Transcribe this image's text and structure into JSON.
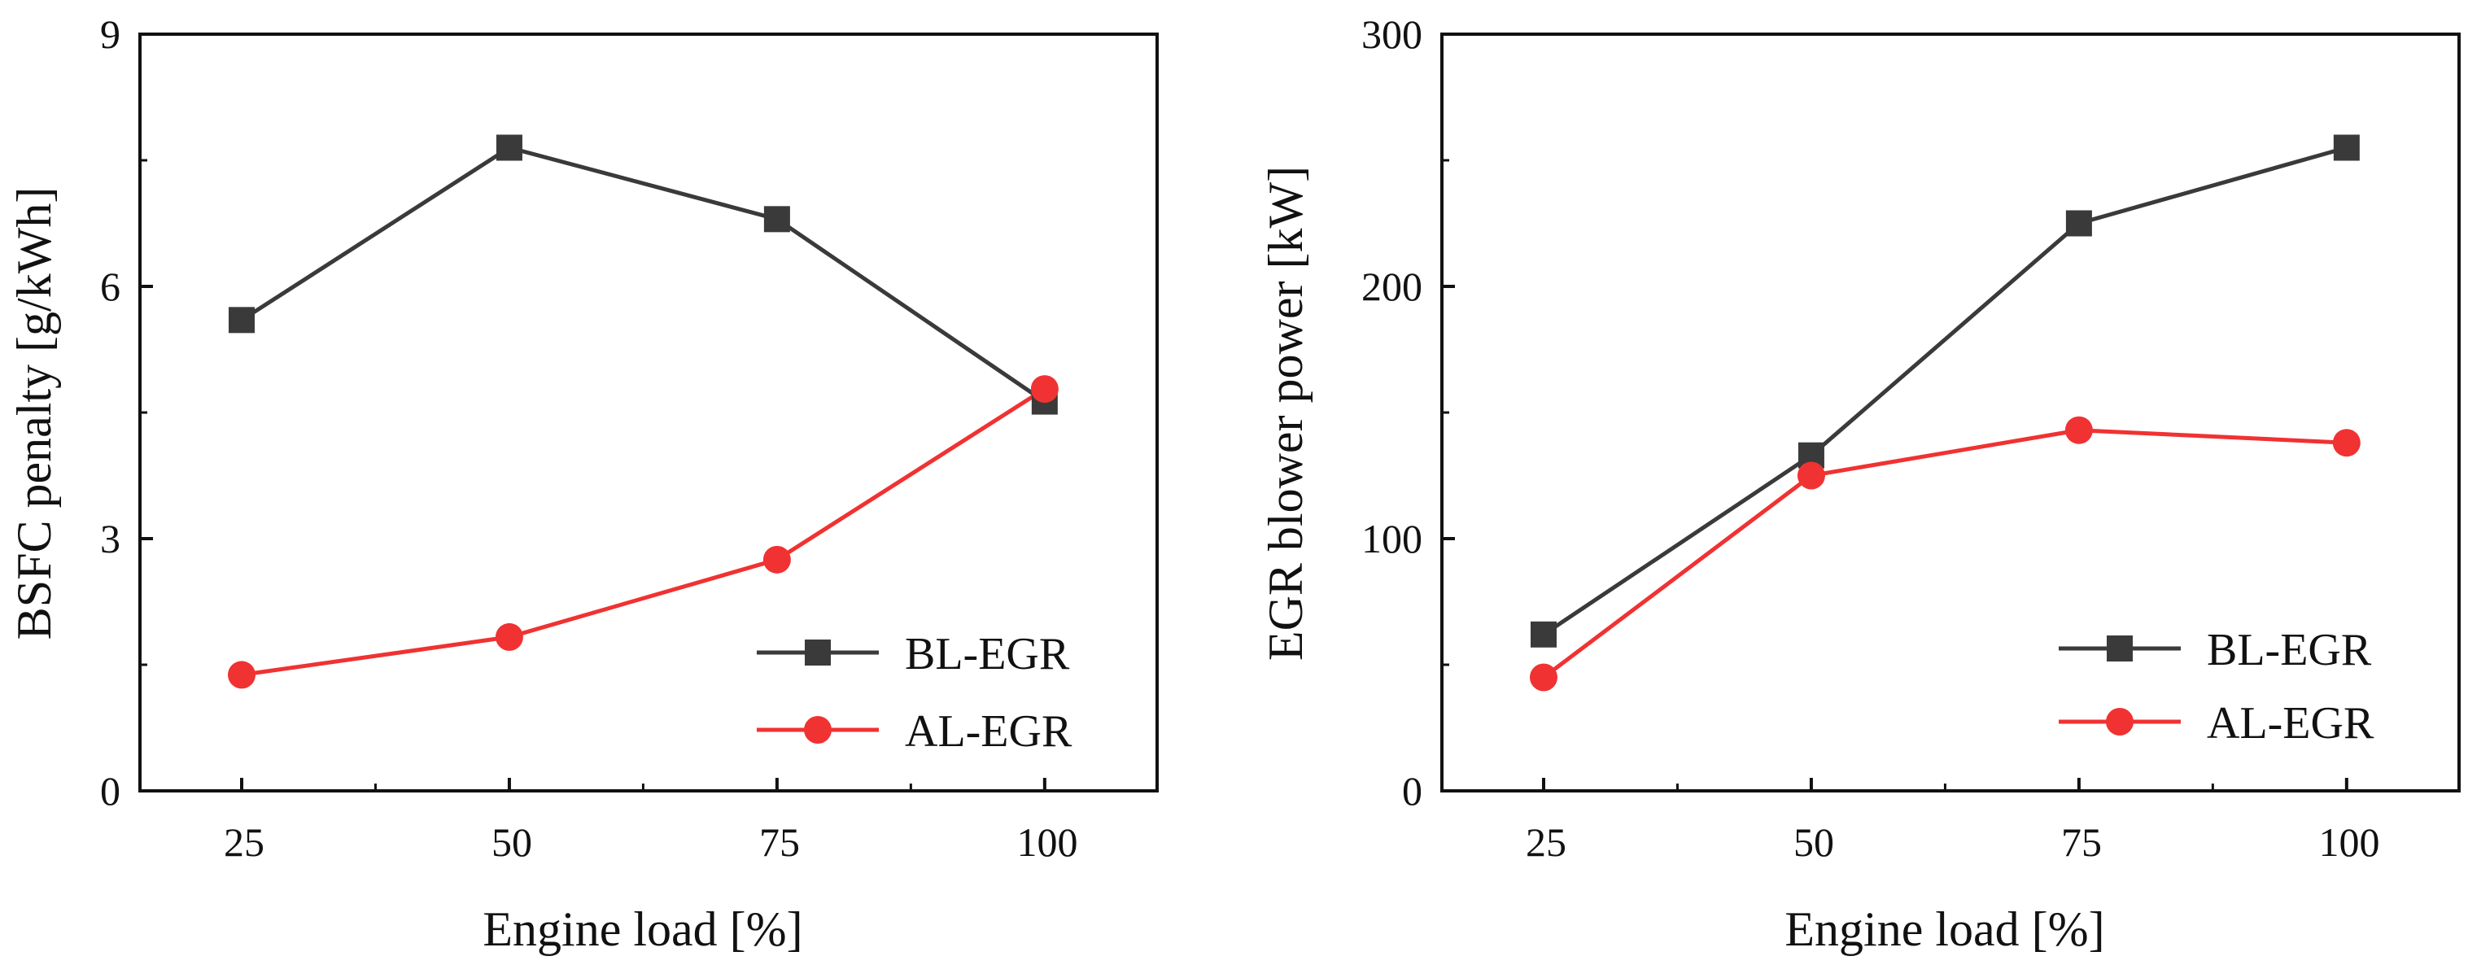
{
  "colors": {
    "bl_egr": "#3a3a3a",
    "al_egr": "#f03232",
    "axis": "#111111"
  },
  "chart_data": [
    {
      "type": "line",
      "title": "",
      "xlabel": "Engine load [%]",
      "ylabel": "BSFC penalty [g/kWh]",
      "categories": [
        "25",
        "50",
        "75",
        "100"
      ],
      "x": [
        25,
        50,
        75,
        100
      ],
      "xlim": [
        15.5,
        110.5
      ],
      "ylim": [
        0,
        9
      ],
      "yticks": [
        "0",
        "3",
        "6",
        "9"
      ],
      "ytick_values": [
        0,
        3,
        6,
        9
      ],
      "grid": false,
      "legend_position": "bottom-right",
      "series": [
        {
          "name": "BL-EGR",
          "marker": "square",
          "color": "#3a3a3a",
          "values": [
            5.6,
            7.65,
            6.8,
            4.63
          ]
        },
        {
          "name": "AL-EGR",
          "marker": "circle",
          "color": "#f03232",
          "values": [
            1.38,
            1.83,
            2.75,
            4.78
          ]
        }
      ]
    },
    {
      "type": "line",
      "title": "",
      "xlabel": "Engine load [%]",
      "ylabel": "EGR blower power [kW]",
      "categories": [
        "25",
        "50",
        "75",
        "100"
      ],
      "x": [
        25,
        50,
        75,
        100
      ],
      "xlim": [
        15.5,
        110.5
      ],
      "ylim": [
        0,
        300
      ],
      "yticks": [
        "0",
        "100",
        "200",
        "300"
      ],
      "ytick_values": [
        0,
        100,
        200,
        300
      ],
      "grid": false,
      "legend_position": "bottom-right",
      "series": [
        {
          "name": "BL-EGR",
          "marker": "square",
          "color": "#3a3a3a",
          "values": [
            62,
            133,
            225,
            255
          ]
        },
        {
          "name": "AL-EGR",
          "marker": "circle",
          "color": "#f03232",
          "values": [
            45,
            125,
            143,
            138
          ]
        }
      ]
    }
  ]
}
